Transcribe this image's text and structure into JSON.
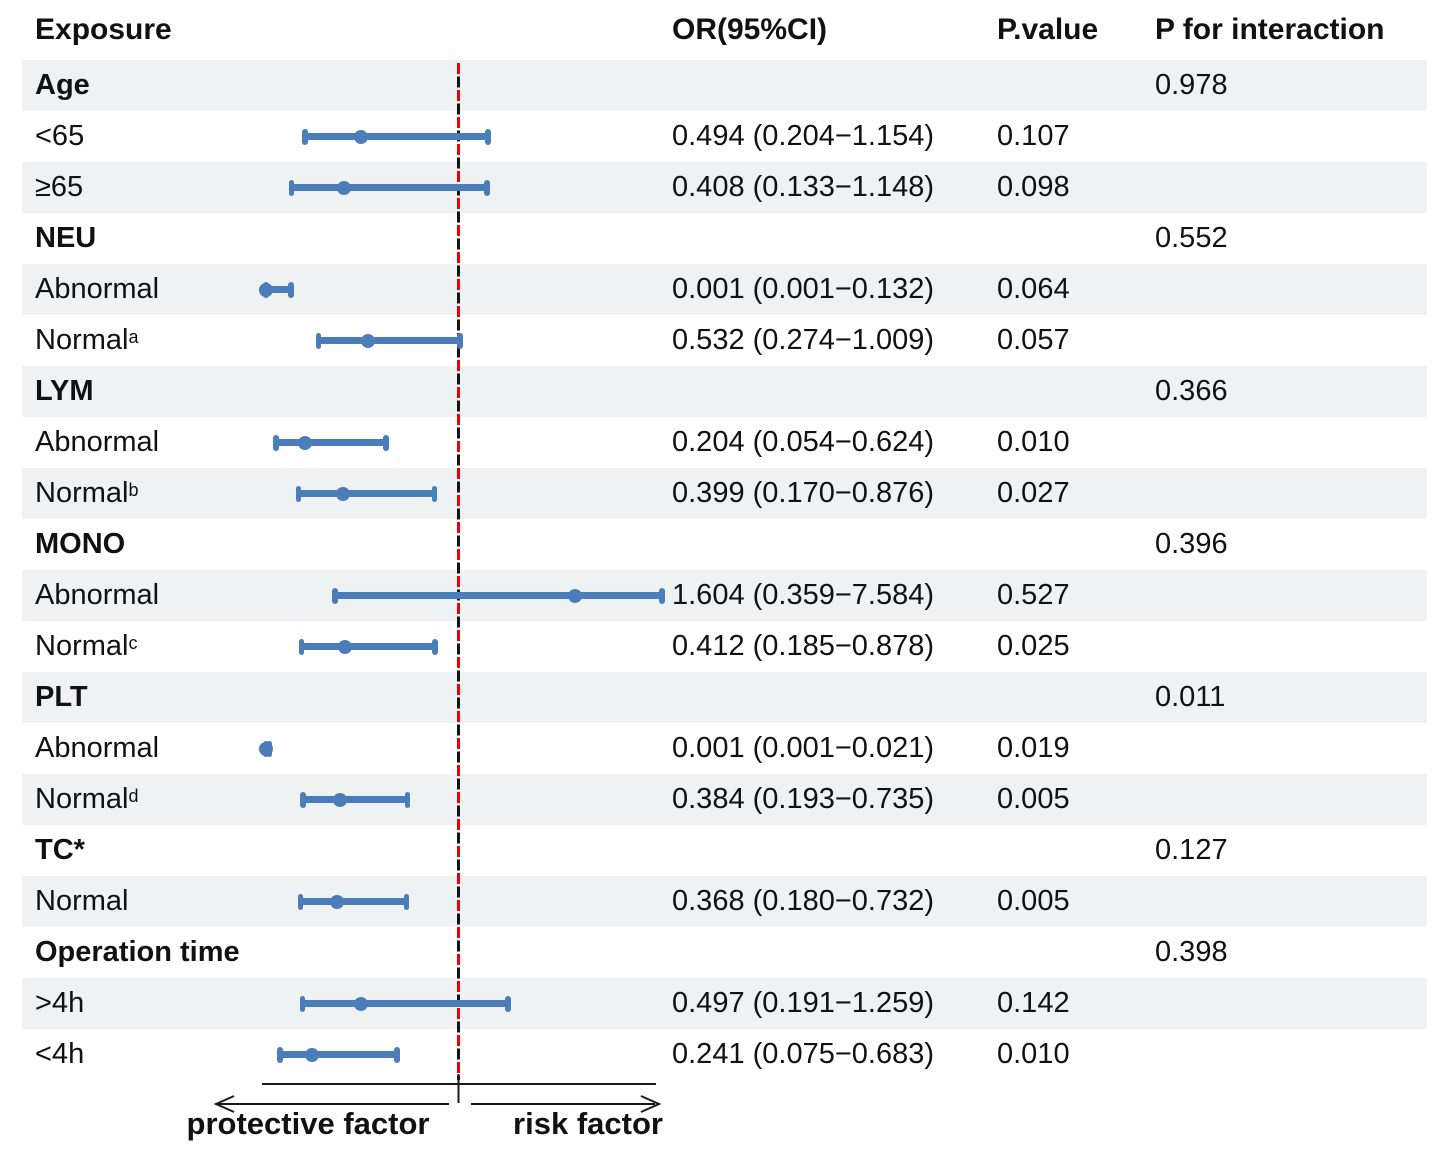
{
  "header": {
    "exposure": "Exposure",
    "or_ci": "OR(95%CI)",
    "p_value": "P.value",
    "p_interaction": "P for interaction"
  },
  "axis": {
    "left_label": "protective factor",
    "right_label": "risk factor",
    "reference_or": 1
  },
  "colors": {
    "bar_blue": "#4a7db9",
    "stripe_gray": "#eef2f2",
    "dash_red": "#e8000a",
    "dash_black": "#141414"
  },
  "chart_data": {
    "type": "forest",
    "x_scale": "linear",
    "x_range_or": [
      0,
      2.05
    ],
    "reference_line_or": 1,
    "legend_position": "none",
    "rows": [
      {
        "label": "Age",
        "bold": true,
        "p_interaction": "0.978"
      },
      {
        "label": "<65",
        "or": 0.494,
        "lo": 0.204,
        "hi": 1.154,
        "or_text": "0.494 (0.204−1.154)",
        "p_value": "0.107"
      },
      {
        "label": "≥65",
        "or": 0.408,
        "lo": 0.133,
        "hi": 1.148,
        "or_text": "0.408 (0.133−1.148)",
        "p_value": "0.098"
      },
      {
        "label": "NEU",
        "bold": true,
        "p_interaction": "0.552"
      },
      {
        "label": "Abnormal",
        "or": 0.001,
        "lo": 0.001,
        "hi": 0.132,
        "or_text": "0.001 (0.001−0.132)",
        "p_value": "0.064"
      },
      {
        "label": "Normal",
        "sup": "a",
        "or": 0.532,
        "lo": 0.274,
        "hi": 1.009,
        "or_text": "0.532 (0.274−1.009)",
        "p_value": "0.057"
      },
      {
        "label": "LYM",
        "bold": true,
        "p_interaction": "0.366"
      },
      {
        "label": "Abnormal",
        "or": 0.204,
        "lo": 0.054,
        "hi": 0.624,
        "or_text": "0.204 (0.054−0.624)",
        "p_value": "0.010"
      },
      {
        "label": "Normal",
        "sup": "b",
        "or": 0.399,
        "lo": 0.17,
        "hi": 0.876,
        "or_text": "0.399 (0.170−0.876)",
        "p_value": "0.027"
      },
      {
        "label": "MONO",
        "bold": true,
        "p_interaction": "0.396"
      },
      {
        "label": "Abnormal",
        "or": 1.604,
        "lo": 0.359,
        "hi": 7.584,
        "or_text": "1.604 (0.359−7.584)",
        "p_value": "0.527"
      },
      {
        "label": "Normal",
        "sup": "c",
        "or": 0.412,
        "lo": 0.185,
        "hi": 0.878,
        "or_text": "0.412 (0.185−0.878)",
        "p_value": "0.025"
      },
      {
        "label": "PLT",
        "bold": true,
        "p_interaction": "0.011"
      },
      {
        "label": "Abnormal",
        "or": 0.001,
        "lo": 0.001,
        "hi": 0.021,
        "or_text": "0.001 (0.001−0.021)",
        "p_value": "0.019"
      },
      {
        "label": "Normal",
        "sup": "d",
        "or": 0.384,
        "lo": 0.193,
        "hi": 0.735,
        "or_text": "0.384 (0.193−0.735)",
        "p_value": "0.005"
      },
      {
        "label": "TC*",
        "bold": true,
        "p_interaction": "0.127"
      },
      {
        "label": "Normal",
        "or": 0.368,
        "lo": 0.18,
        "hi": 0.732,
        "or_text": "0.368 (0.180−0.732)",
        "p_value": "0.005"
      },
      {
        "label": "Operation time",
        "bold": true,
        "p_interaction": "0.398"
      },
      {
        "label": ">4h",
        "or": 0.497,
        "lo": 0.191,
        "hi": 1.259,
        "or_text": "0.497 (0.191−1.259)",
        "p_value": "0.142"
      },
      {
        "label": "<4h",
        "or": 0.241,
        "lo": 0.075,
        "hi": 0.683,
        "or_text": "0.241 (0.075−0.683)",
        "p_value": "0.010"
      }
    ]
  }
}
